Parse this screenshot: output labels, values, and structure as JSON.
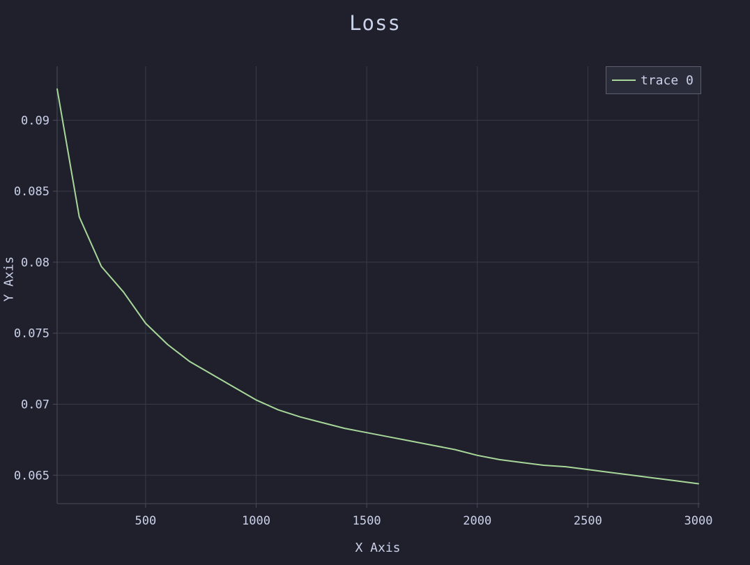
{
  "title": "Loss",
  "colors": {
    "background": "#1f202b",
    "text": "#cbd1e9",
    "grid": "#383a47",
    "axis": "#4a4c5c",
    "trace": "#a8d79a",
    "legend_background": "#2a2c3a",
    "legend_border": "#5b5e6e"
  },
  "legend": {
    "position": "top-right",
    "entries": [
      "trace 0"
    ]
  },
  "chart_data": {
    "type": "line",
    "title": "Loss",
    "xlabel": "X Axis",
    "ylabel": "Y Axis",
    "grid": true,
    "legend_position": "top-right",
    "xlim": [
      100,
      3000
    ],
    "ylim": [
      0.063,
      0.0938
    ],
    "x_ticks": [
      500,
      1000,
      1500,
      2000,
      2500,
      3000
    ],
    "x_tick_labels": [
      "500",
      "1000",
      "1500",
      "2000",
      "2500",
      "3000"
    ],
    "y_ticks": [
      0.065,
      0.07,
      0.075,
      0.08,
      0.085,
      0.09
    ],
    "y_tick_labels": [
      "0.065",
      "0.07",
      "0.075",
      "0.08",
      "0.085",
      "0.09"
    ],
    "series": [
      {
        "name": "trace 0",
        "color": "#a8d79a",
        "x": [
          100,
          200,
          300,
          400,
          500,
          600,
          700,
          800,
          900,
          1000,
          1100,
          1200,
          1300,
          1400,
          1500,
          1600,
          1700,
          1800,
          1900,
          2000,
          2100,
          2200,
          2300,
          2400,
          2500,
          2600,
          2700,
          2800,
          2900,
          3000
        ],
        "y": [
          0.0922,
          0.0832,
          0.0797,
          0.0779,
          0.0757,
          0.0742,
          0.073,
          0.0721,
          0.0712,
          0.0703,
          0.0696,
          0.0691,
          0.0687,
          0.0683,
          0.068,
          0.0677,
          0.0674,
          0.0671,
          0.0668,
          0.0664,
          0.0661,
          0.0659,
          0.0657,
          0.0656,
          0.0654,
          0.0652,
          0.065,
          0.0648,
          0.0646,
          0.0644
        ]
      }
    ]
  }
}
